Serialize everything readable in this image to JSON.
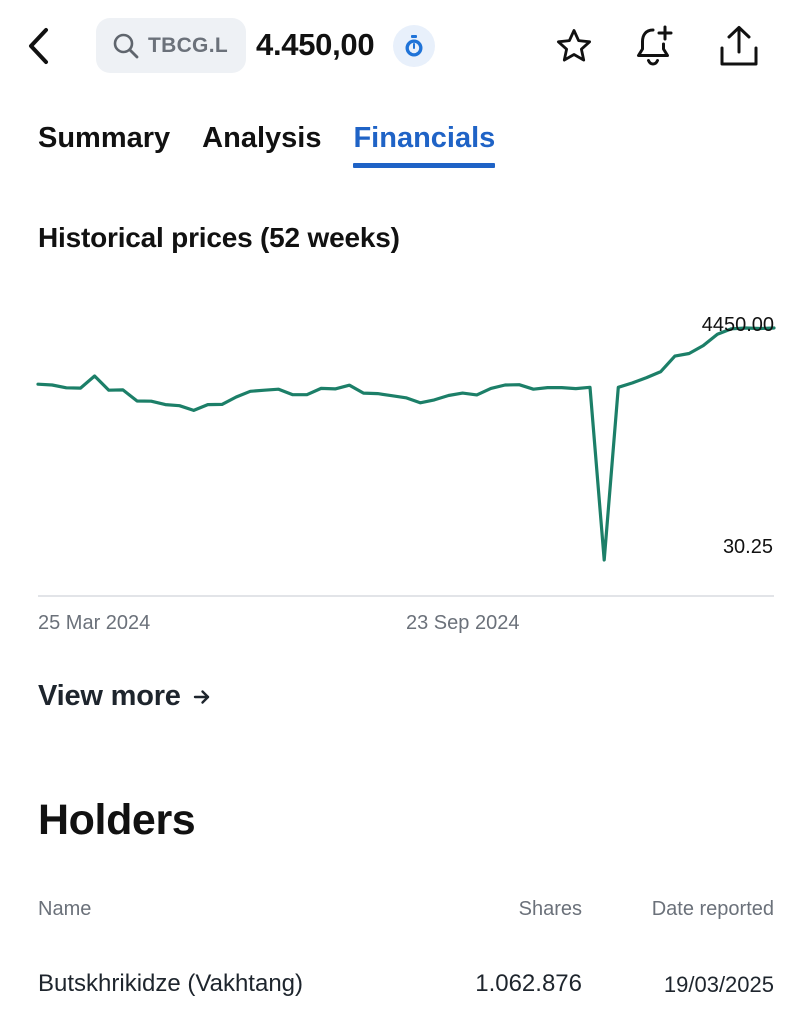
{
  "header": {
    "back_icon": "chevron-left-icon",
    "search_icon": "search-icon",
    "ticker": "TBCG.L",
    "price": "4.450,00",
    "timer_icon": "stopwatch-icon",
    "star_icon": "star-icon",
    "bell_icon": "bell-plus-icon",
    "share_icon": "share-icon",
    "accent_color": "#1f63c6"
  },
  "tabs": [
    {
      "label": "Summary",
      "active": false
    },
    {
      "label": "Analysis",
      "active": false
    },
    {
      "label": "Financials",
      "active": true
    }
  ],
  "historical": {
    "title": "Historical prices (52 weeks)",
    "view_more_label": "View more",
    "view_more_icon": "arrow-right-icon"
  },
  "chart_data": {
    "type": "line",
    "title": "Historical prices (52 weeks)",
    "x_tick_labels": [
      "25 Mar 2024",
      "23 Sep 2024"
    ],
    "max_label": "4450.00",
    "min_label": "30.25",
    "ylim": [
      30.25,
      4450.0
    ],
    "line_color": "#1c7f68",
    "grid": false,
    "series": [
      {
        "values": [
          3380,
          3365,
          3310,
          3305,
          3535,
          3265,
          3270,
          3060,
          3055,
          2990,
          2970,
          2880,
          2990,
          2995,
          3135,
          3245,
          3265,
          3285,
          3180,
          3180,
          3300,
          3290,
          3360,
          3210,
          3200,
          3160,
          3120,
          3025,
          3080,
          3165,
          3210,
          3175,
          3300,
          3365,
          3370,
          3285,
          3315,
          3315,
          3295,
          3320,
          30.25,
          3320,
          3405,
          3505,
          3620,
          3915,
          3965,
          4115,
          4330,
          4435,
          4450,
          4440,
          4450
        ]
      }
    ]
  },
  "holders": {
    "title": "Holders",
    "columns": {
      "name": "Name",
      "shares": "Shares",
      "date": "Date reported"
    },
    "rows": [
      {
        "name": "Butskhrikidze (Vakhtang)",
        "shares": "1.062.876",
        "date": "19/03/2025"
      }
    ]
  }
}
